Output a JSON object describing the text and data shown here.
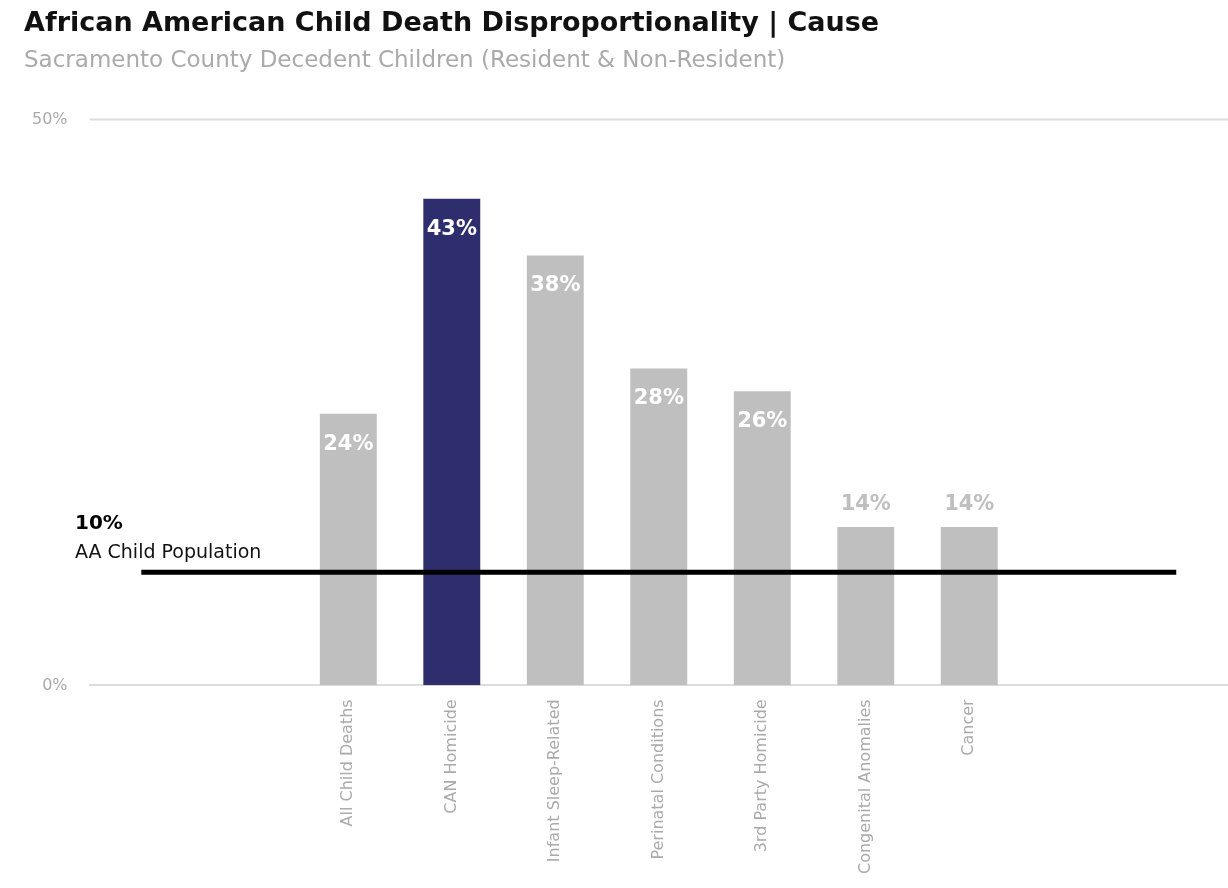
{
  "chart_data": {
    "type": "bar",
    "title": "African American Child Death Disproportionality | Cause",
    "subtitle": "Sacramento County Decedent Children (Resident & Non-Resident)",
    "categories": [
      null,
      null,
      "All Child Deaths",
      "CAN Homicide",
      "Infant Sleep-Related",
      "Perinatal Conditions",
      "3rd Party Homicide",
      "Congenital Anomalies",
      "Cancer",
      null,
      null
    ],
    "values": [
      null,
      null,
      24,
      43,
      38,
      28,
      26,
      14,
      14,
      null,
      null
    ],
    "value_labels": [
      null,
      null,
      "24%",
      "43%",
      "38%",
      "28%",
      "26%",
      "14%",
      "14%",
      null,
      null
    ],
    "colors": [
      "#bfbfbf",
      "#bfbfbf",
      "#bfbfbf",
      "#2e2e6e",
      "#bfbfbf",
      "#bfbfbf",
      "#bfbfbf",
      "#bfbfbf",
      "#bfbfbf",
      "#bfbfbf",
      "#bfbfbf"
    ],
    "ylim": [
      0,
      50
    ],
    "yticks": [
      {
        "value": 0,
        "label": "0%"
      },
      {
        "value": 50,
        "label": "50%"
      }
    ],
    "legend": false,
    "ref_lines": [
      {
        "axis": "y",
        "value": 10,
        "label": "AA Child Population",
        "color": "#000000"
      }
    ],
    "annotations": [
      "10%"
    ]
  }
}
